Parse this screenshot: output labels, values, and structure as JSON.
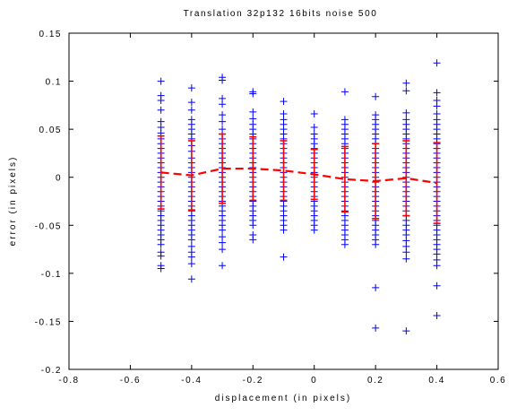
{
  "chart_data": {
    "type": "scatter",
    "title": "Translation 32p132 16bits noise 500",
    "xlabel": "displacement (in pixels)",
    "ylabel": "error (in pixels)",
    "xlim": [
      -0.8,
      0.6
    ],
    "ylim": [
      -0.2,
      0.15
    ],
    "x_ticks": [
      "-0.8",
      "-0.6",
      "-0.4",
      "-0.2",
      "0",
      "0.2",
      "0.4",
      "0.6"
    ],
    "y_ticks": [
      "0.15",
      "0.1",
      "0.05",
      "0",
      "-0.05",
      "-0.1",
      "-0.15",
      "-0.2"
    ],
    "grid": false,
    "colors": {
      "samples": "#0000ff",
      "mean_line": "#ff0000",
      "error_bars": "#ff0000"
    },
    "series": [
      {
        "marker": "plus",
        "points": [
          {
            "x": -0.5,
            "ys": [
              0.1,
              0.085,
              0.08,
              0.07,
              0.058,
              0.052,
              0.046,
              0.04,
              0.035,
              0.03,
              0.025,
              0.02,
              0.015,
              0.01,
              0.005,
              0.0,
              -0.005,
              -0.01,
              -0.015,
              -0.02,
              -0.025,
              -0.03,
              -0.035,
              -0.04,
              -0.045,
              -0.05,
              -0.055,
              -0.06,
              -0.065,
              -0.07,
              -0.078,
              -0.082,
              -0.092,
              -0.095
            ]
          },
          {
            "x": -0.4,
            "ys": [
              0.093,
              0.078,
              0.07,
              0.06,
              0.055,
              0.05,
              0.045,
              0.04,
              0.033,
              0.027,
              0.02,
              0.015,
              0.01,
              0.005,
              0.0,
              -0.005,
              -0.01,
              -0.015,
              -0.02,
              -0.025,
              -0.03,
              -0.035,
              -0.04,
              -0.045,
              -0.05,
              -0.055,
              -0.06,
              -0.065,
              -0.072,
              -0.078,
              -0.083,
              -0.09,
              -0.106
            ]
          },
          {
            "x": -0.3,
            "ys": [
              0.104,
              0.101,
              0.082,
              0.076,
              0.065,
              0.058,
              0.05,
              0.045,
              0.04,
              0.035,
              0.03,
              0.025,
              0.02,
              0.015,
              0.01,
              0.005,
              0.0,
              -0.005,
              -0.01,
              -0.015,
              -0.02,
              -0.025,
              -0.03,
              -0.035,
              -0.04,
              -0.045,
              -0.05,
              -0.055,
              -0.062,
              -0.068,
              -0.075,
              -0.092
            ]
          },
          {
            "x": -0.2,
            "ys": [
              0.089,
              0.087,
              0.068,
              0.061,
              0.055,
              0.05,
              0.045,
              0.04,
              0.035,
              0.03,
              0.025,
              0.02,
              0.015,
              0.01,
              0.005,
              0.0,
              -0.005,
              -0.01,
              -0.015,
              -0.02,
              -0.025,
              -0.03,
              -0.035,
              -0.04,
              -0.045,
              -0.05,
              -0.06,
              -0.065
            ]
          },
          {
            "x": -0.1,
            "ys": [
              0.079,
              0.066,
              0.06,
              0.055,
              0.05,
              0.045,
              0.04,
              0.035,
              0.03,
              0.025,
              0.02,
              0.015,
              0.01,
              0.005,
              0.0,
              -0.005,
              -0.01,
              -0.015,
              -0.02,
              -0.025,
              -0.03,
              -0.035,
              -0.04,
              -0.045,
              -0.05,
              -0.055,
              -0.083
            ]
          },
          {
            "x": 0.0,
            "ys": [
              0.066,
              0.052,
              0.045,
              0.04,
              0.035,
              0.03,
              0.025,
              0.02,
              0.015,
              0.01,
              0.005,
              0.0,
              -0.005,
              -0.01,
              -0.015,
              -0.02,
              -0.025,
              -0.03,
              -0.035,
              -0.04,
              -0.045,
              -0.05,
              -0.055
            ]
          },
          {
            "x": 0.1,
            "ys": [
              0.089,
              0.06,
              0.055,
              0.05,
              0.045,
              0.04,
              0.035,
              0.03,
              0.025,
              0.02,
              0.015,
              0.01,
              0.005,
              0.0,
              -0.005,
              -0.01,
              -0.015,
              -0.02,
              -0.025,
              -0.03,
              -0.035,
              -0.04,
              -0.045,
              -0.05,
              -0.055,
              -0.06,
              -0.065,
              -0.07
            ]
          },
          {
            "x": 0.2,
            "ys": [
              0.084,
              0.065,
              0.06,
              0.055,
              0.05,
              0.045,
              0.04,
              0.035,
              0.03,
              0.025,
              0.02,
              0.015,
              0.01,
              0.005,
              0.0,
              -0.005,
              -0.01,
              -0.015,
              -0.02,
              -0.025,
              -0.03,
              -0.035,
              -0.04,
              -0.045,
              -0.05,
              -0.055,
              -0.06,
              -0.065,
              -0.07,
              -0.115,
              -0.157
            ]
          },
          {
            "x": 0.3,
            "ys": [
              0.098,
              0.09,
              0.067,
              0.06,
              0.055,
              0.05,
              0.045,
              0.04,
              0.035,
              0.03,
              0.025,
              0.02,
              0.015,
              0.01,
              0.005,
              0.0,
              -0.005,
              -0.01,
              -0.015,
              -0.02,
              -0.025,
              -0.03,
              -0.035,
              -0.04,
              -0.045,
              -0.05,
              -0.055,
              -0.06,
              -0.066,
              -0.072,
              -0.078,
              -0.085,
              -0.16
            ]
          },
          {
            "x": 0.4,
            "ys": [
              0.119,
              0.088,
              0.08,
              0.074,
              0.066,
              0.06,
              0.055,
              0.05,
              0.045,
              0.04,
              0.035,
              0.03,
              0.025,
              0.02,
              0.015,
              0.01,
              0.005,
              0.0,
              -0.005,
              -0.01,
              -0.015,
              -0.02,
              -0.025,
              -0.03,
              -0.035,
              -0.04,
              -0.045,
              -0.05,
              -0.055,
              -0.06,
              -0.065,
              -0.07,
              -0.075,
              -0.08,
              -0.086,
              -0.092,
              -0.113,
              -0.144
            ]
          }
        ]
      },
      {
        "style": "dashed",
        "x": [
          -0.5,
          -0.4,
          -0.3,
          -0.2,
          -0.1,
          0.0,
          0.1,
          0.2,
          0.3,
          0.4
        ],
        "y": [
          0.005,
          0.002,
          0.009,
          0.009,
          0.007,
          0.003,
          -0.002,
          -0.004,
          -0.001,
          -0.006
        ],
        "error": [
          0.038,
          0.036,
          0.036,
          0.033,
          0.031,
          0.026,
          0.034,
          0.039,
          0.039,
          0.042
        ]
      }
    ]
  }
}
